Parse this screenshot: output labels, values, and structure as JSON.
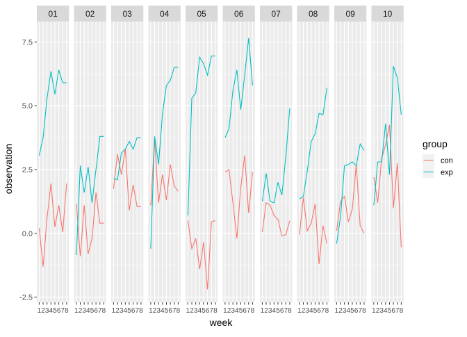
{
  "chart_data": {
    "type": "line",
    "facet_labels": [
      "01",
      "02",
      "03",
      "04",
      "05",
      "06",
      "07",
      "08",
      "09",
      "10"
    ],
    "x": [
      1,
      2,
      3,
      4,
      5,
      6,
      7,
      8
    ],
    "x_tick_labels": [
      "1",
      "2",
      "3",
      "4",
      "5",
      "6",
      "7",
      "8"
    ],
    "xlabel": "week",
    "ylabel": "observation",
    "ylim": [
      -2.7,
      8.3
    ],
    "y_ticks": [
      -2.5,
      0.0,
      2.5,
      5.0,
      7.5
    ],
    "y_tick_labels": [
      "-2.5",
      "0.0",
      "2.5",
      "5.0",
      "7.5"
    ],
    "grid": true,
    "legend": {
      "title": "group",
      "placement": "right",
      "entries": [
        {
          "name": "con",
          "color": "#F8766D"
        },
        {
          "name": "exp",
          "color": "#00BFC4"
        }
      ]
    },
    "colors": {
      "con": "#F8766D",
      "exp": "#00BFC4",
      "panel_bg": "#EBEBEB",
      "strip_bg": "#D9D9D9",
      "grid": "#FFFFFF"
    },
    "facets": [
      {
        "label": "01",
        "con": [
          0.2,
          -1.3,
          0.6,
          1.95,
          0.25,
          1.1,
          0.05,
          1.95
        ],
        "exp": [
          3.05,
          3.75,
          5.3,
          6.35,
          5.45,
          6.4,
          5.9,
          5.9
        ]
      },
      {
        "label": "02",
        "con": [
          1.15,
          -0.9,
          1.1,
          -0.8,
          -0.2,
          1.6,
          0.4,
          0.4
        ],
        "exp": [
          -0.85,
          2.65,
          1.6,
          2.6,
          1.2,
          2.5,
          3.8,
          3.8
        ]
      },
      {
        "label": "03",
        "con": [
          1.75,
          3.1,
          2.3,
          3.3,
          0.9,
          1.9,
          1.05,
          1.05
        ],
        "exp": [
          2.15,
          2.1,
          3.15,
          3.3,
          3.6,
          3.3,
          3.75,
          3.75
        ]
      },
      {
        "label": "04",
        "con": [
          1.1,
          3.7,
          1.2,
          2.3,
          1.3,
          2.7,
          1.85,
          1.65
        ],
        "exp": [
          -0.6,
          3.8,
          2.7,
          4.7,
          5.8,
          6.0,
          6.5,
          6.5
        ]
      },
      {
        "label": "05",
        "con": [
          0.5,
          -0.6,
          -0.2,
          -1.4,
          -0.35,
          -2.2,
          0.45,
          0.5
        ],
        "exp": [
          0.7,
          5.3,
          5.5,
          6.9,
          6.65,
          6.2,
          6.95,
          6.95
        ]
      },
      {
        "label": "06",
        "con": [
          2.4,
          2.5,
          1.2,
          -0.2,
          1.8,
          3.05,
          0.8,
          2.4
        ],
        "exp": [
          3.75,
          4.1,
          5.6,
          6.4,
          4.85,
          6.2,
          7.65,
          5.8
        ]
      },
      {
        "label": "07",
        "con": [
          0.05,
          1.2,
          1.1,
          0.7,
          0.55,
          -0.1,
          -0.05,
          0.5
        ],
        "exp": [
          1.25,
          2.35,
          1.25,
          1.2,
          2.0,
          1.5,
          3.0,
          4.9
        ]
      },
      {
        "label": "08",
        "con": [
          -0.05,
          1.4,
          0.1,
          0.4,
          1.15,
          -1.2,
          0.3,
          -0.4
        ],
        "exp": [
          1.35,
          1.45,
          2.45,
          3.6,
          3.9,
          4.7,
          4.65,
          5.7
        ]
      },
      {
        "label": "09",
        "con": [
          0.1,
          1.25,
          1.45,
          0.45,
          0.95,
          2.7,
          0.3,
          0.0
        ],
        "exp": [
          -0.4,
          0.65,
          2.65,
          2.7,
          2.8,
          2.65,
          3.5,
          3.25
        ]
      },
      {
        "label": "10",
        "con": [
          2.2,
          1.2,
          2.95,
          3.45,
          4.25,
          1.0,
          2.75,
          -0.55
        ],
        "exp": [
          1.1,
          2.8,
          2.8,
          4.3,
          2.3,
          6.55,
          6.1,
          4.65
        ]
      }
    ]
  }
}
